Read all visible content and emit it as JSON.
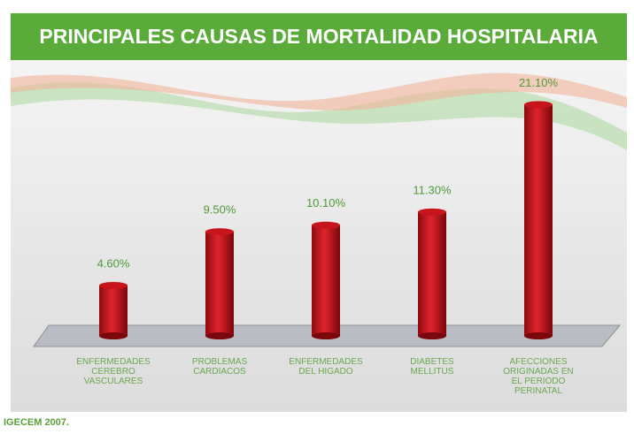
{
  "chart_data": {
    "type": "bar",
    "title": "PRINCIPALES CAUSAS DE MORTALIDAD HOSPITALARIA",
    "categories": [
      "ENFERMEDADES\nCEREBRO\nVASCULARES",
      "PROBLEMAS\nCARDIACOS",
      "ENFERMEDADES\nDEL HIGADO",
      "DIABETES\nMELLITUS",
      "AFECCIONES\nORIGINADAS EN\nEL PERIODO\nPERINATAL"
    ],
    "values": [
      4.6,
      9.5,
      10.1,
      11.3,
      21.1
    ],
    "value_labels": [
      "4.60%",
      "9.50%",
      "10.10%",
      "11.30%",
      "21.10%"
    ],
    "color": "#c8141b",
    "source": "IGECEM 2007."
  }
}
